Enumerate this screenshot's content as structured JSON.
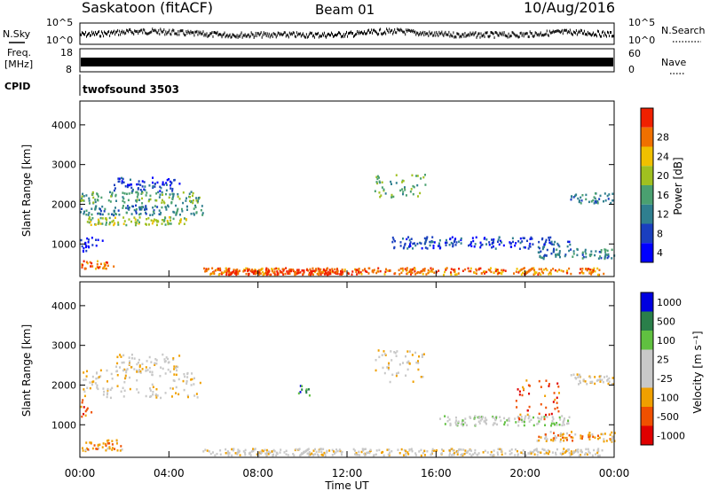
{
  "header": {
    "title": "Saskatoon (fitACF)",
    "beam": "Beam 01",
    "date": "10/Aug/2016"
  },
  "top_panels": {
    "nsky_label": "N.Sky",
    "nsky_ticks": [
      "10^5",
      "10^0"
    ],
    "nsearch_label": "N.Search",
    "nsearch_ticks": [
      "10^5",
      "10^0"
    ],
    "freq_label_line1": "Freq.",
    "freq_label_line2": "[MHz]",
    "freq_ticks": [
      "18",
      "8"
    ],
    "nave_label": "Nave",
    "nave_ticks": [
      "60",
      "0"
    ],
    "cpid_label": "CPID",
    "cpid_value": "twofsound 3503"
  },
  "colors": {
    "power": [
      "#0000ff",
      "#1a3fbf",
      "#2f7f8f",
      "#4aa070",
      "#a0c020",
      "#f0c000",
      "#f07000",
      "#f02000"
    ],
    "velocity": [
      "#e00000",
      "#f05000",
      "#f0a000",
      "#c8c8c8",
      "#c8c8c8",
      "#60c040",
      "#2a7f4a",
      "#0000e0"
    ],
    "ground_scatter": "#c8c8c8"
  },
  "chart_data": [
    {
      "type": "heatmap",
      "name": "power-panel",
      "ylabel": "Slant Range [km]",
      "yticks": [
        1000,
        2000,
        3000,
        4000
      ],
      "ylim": [
        180,
        4600
      ],
      "xlim": [
        0,
        24
      ],
      "colorbar_label": "Power [dB]",
      "colorbar_ticks": [
        "4",
        "8",
        "12",
        "16",
        "20",
        "24",
        "28"
      ],
      "bands": [
        {
          "t0": 0.0,
          "t1": 5.4,
          "r0": 2050,
          "r1": 2350,
          "level": 3
        },
        {
          "t0": 0.3,
          "t1": 4.8,
          "r0": 1500,
          "r1": 1700,
          "level": 4
        },
        {
          "t0": 0.0,
          "t1": 5.5,
          "r0": 1750,
          "r1": 2000,
          "level": 2
        },
        {
          "t0": 0.0,
          "t1": 1.5,
          "r0": 400,
          "r1": 600,
          "level": 6
        },
        {
          "t0": 5.5,
          "t1": 23.5,
          "r0": 250,
          "r1": 420,
          "level": 6
        },
        {
          "t0": 6.5,
          "t1": 12.5,
          "r0": 250,
          "r1": 380,
          "level": 7
        },
        {
          "t0": 13.2,
          "t1": 15.5,
          "r0": 2200,
          "r1": 2800,
          "level": 3
        },
        {
          "t0": 14.0,
          "t1": 22.0,
          "r0": 900,
          "r1": 1200,
          "level": 1
        },
        {
          "t0": 22.0,
          "t1": 24.0,
          "r0": 2050,
          "r1": 2300,
          "level": 2
        },
        {
          "t0": 1.5,
          "t1": 4.5,
          "r0": 2350,
          "r1": 2700,
          "level": 1
        },
        {
          "t0": 0.0,
          "t1": 1.0,
          "r0": 800,
          "r1": 1200,
          "level": 0
        },
        {
          "t0": 20.5,
          "t1": 24.0,
          "r0": 650,
          "r1": 900,
          "level": 2
        }
      ]
    },
    {
      "type": "heatmap",
      "name": "velocity-panel",
      "ylabel": "Slant Range [km]",
      "yticks": [
        1000,
        2000,
        3000,
        4000
      ],
      "ylim": [
        180,
        4600
      ],
      "xlim": [
        0,
        24
      ],
      "xticks": [
        "00:00",
        "04:00",
        "08:00",
        "12:00",
        "16:00",
        "20:00",
        "00:00"
      ],
      "xlabel": "Time UT",
      "colorbar_label": "Velocity [m s⁻¹]",
      "colorbar_ticks": [
        "1000",
        "500",
        "100",
        "25",
        "-25",
        "-100",
        "-500",
        "-1000"
      ],
      "bands": [
        {
          "t0": 0.0,
          "t1": 5.4,
          "r0": 1700,
          "r1": 2400,
          "level": 3
        },
        {
          "t0": 1.5,
          "t1": 4.5,
          "r0": 2350,
          "r1": 2800,
          "level": 3
        },
        {
          "t0": 0.0,
          "t1": 2.0,
          "r0": 350,
          "r1": 650,
          "level": 2
        },
        {
          "t0": 5.5,
          "t1": 23.5,
          "r0": 250,
          "r1": 420,
          "level": 3
        },
        {
          "t0": 13.2,
          "t1": 15.5,
          "r0": 2100,
          "r1": 2900,
          "level": 3
        },
        {
          "t0": 16.0,
          "t1": 22.0,
          "r0": 1000,
          "r1": 1250,
          "level": 4
        },
        {
          "t0": 19.5,
          "t1": 21.5,
          "r0": 1100,
          "r1": 2200,
          "level": 1
        },
        {
          "t0": 22.0,
          "t1": 24.0,
          "r0": 2050,
          "r1": 2300,
          "level": 3
        },
        {
          "t0": 9.8,
          "t1": 10.3,
          "r0": 1700,
          "r1": 2100,
          "level": 6
        },
        {
          "t0": 0.0,
          "t1": 0.5,
          "r0": 1200,
          "r1": 1700,
          "level": 1
        },
        {
          "t0": 20.5,
          "t1": 24.0,
          "r0": 600,
          "r1": 850,
          "level": 2
        }
      ]
    }
  ]
}
